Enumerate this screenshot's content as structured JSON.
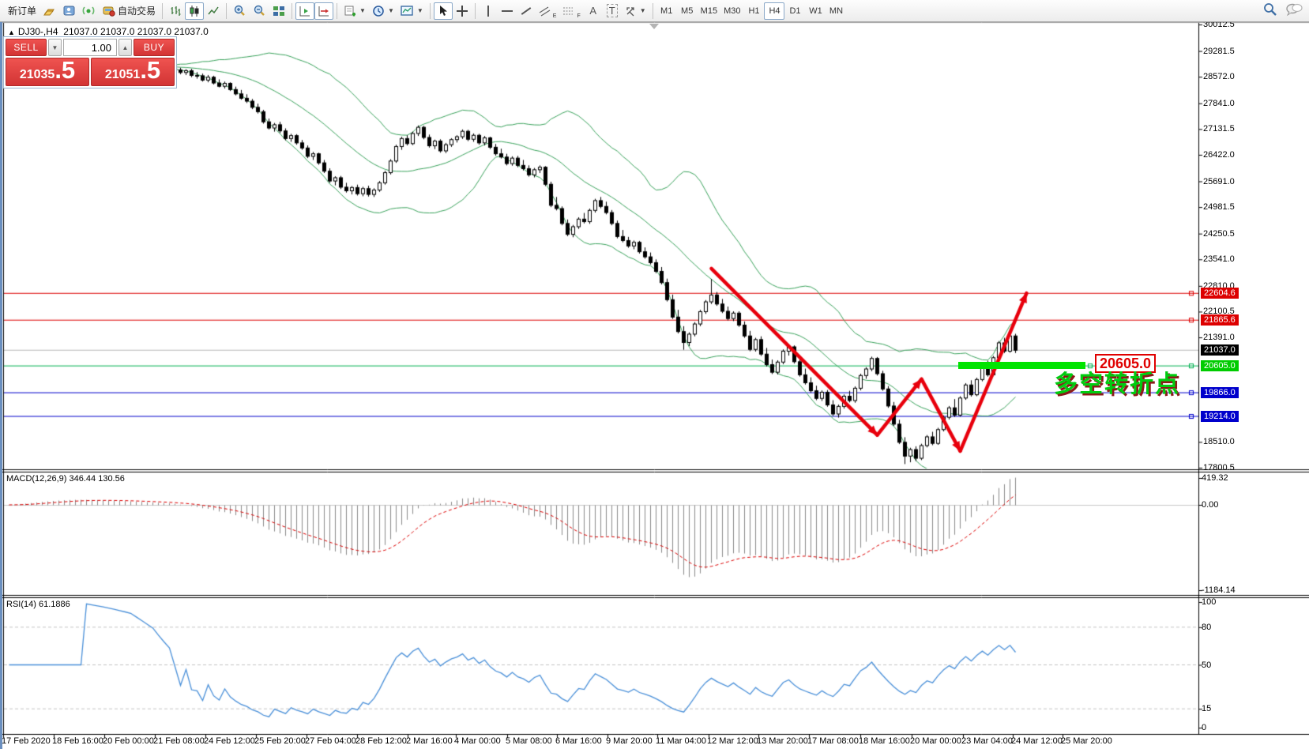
{
  "toolbar": {
    "new_order": "新订单",
    "auto_trading": "自动交易",
    "timeframes": [
      "M1",
      "M5",
      "M15",
      "M30",
      "H1",
      "H4",
      "D1",
      "W1",
      "MN"
    ],
    "active_timeframe": "H4",
    "tool_letters": {
      "channel": "E",
      "fibo": "F",
      "text": "A",
      "label": "T"
    }
  },
  "trade_panel": {
    "sell": "SELL",
    "buy": "BUY",
    "volume": "1.00",
    "sell_main": "21035",
    "sell_frac": ".5",
    "buy_main": "21051",
    "buy_frac": ".5"
  },
  "chart": {
    "symbol_period": "DJ30-,H4",
    "ohlc_text": "21037.0 21037.0 21037.0 21037.0"
  },
  "panels": {
    "macd": {
      "label": "MACD(12,26,9)",
      "value": "346.44",
      "signal": "130.56"
    },
    "rsi": {
      "label": "RSI(14)",
      "value": "61.1886"
    }
  },
  "annotations": {
    "support_price": "20605.0",
    "turning_point": "多空转折点"
  },
  "chart_data": {
    "type": "candlestick",
    "symbol": "DJ30-",
    "timeframe": "H4",
    "y_axis": {
      "ticks": [
        30012.5,
        29281.5,
        28572.0,
        27841.0,
        27131.5,
        26422.0,
        25691.0,
        24981.5,
        24250.5,
        23541.0,
        22810.0,
        22100.5,
        21391.0,
        18510.0,
        17800.5
      ]
    },
    "x_axis": {
      "labels": [
        [
          "17 Feb 2020",
          2
        ],
        [
          "18 Feb 16:00",
          66
        ],
        [
          "20 Feb 00:00",
          130
        ],
        [
          "21 Feb 08:00",
          194
        ],
        [
          "24 Feb 12:00",
          258
        ],
        [
          "25 Feb 20:00",
          322
        ],
        [
          "27 Feb 04:00",
          386
        ],
        [
          "28 Feb 12:00",
          450
        ],
        [
          "2 Mar 16:00",
          514
        ],
        [
          "4 Mar 00:00",
          575
        ],
        [
          "5 Mar 08:00",
          640
        ],
        [
          "6 Mar 16:00",
          703
        ],
        [
          "9 Mar 20:00",
          767
        ],
        [
          "11 Mar 04:00",
          830
        ],
        [
          "12 Mar 12:00",
          895
        ],
        [
          "13 Mar 20:00",
          958
        ],
        [
          "17 Mar 08:00",
          1022
        ],
        [
          "18 Mar 16:00",
          1087
        ],
        [
          "20 Mar 00:00",
          1152
        ],
        [
          "23 Mar 04:00",
          1217
        ],
        [
          "24 Mar 12:00",
          1280
        ],
        [
          "25 Mar 20:00",
          1343
        ]
      ]
    },
    "price_lines": [
      {
        "price": 22604.6,
        "label": "22604.6",
        "line": "#dd0000",
        "bg": "#dd0000",
        "marker": true
      },
      {
        "price": 21865.6,
        "label": "21865.6",
        "line": "#dd0000",
        "bg": "#dd0000",
        "marker": true
      },
      {
        "price": 21037.0,
        "label": "21037.0",
        "line": "#b8b8b8",
        "bg": "#000000",
        "marker": false
      },
      {
        "price": 20605.0,
        "label": "20605.0",
        "line": "#00b050",
        "bg": "#00cc00",
        "marker": true
      },
      {
        "price": 19866.0,
        "label": "19866.0",
        "line": "#0000cc",
        "bg": "#0000cc",
        "marker": true
      },
      {
        "price": 19214.0,
        "label": "19214.0",
        "line": "#0000cc",
        "bg": "#0000cc",
        "marker": true
      }
    ],
    "macd_axis": {
      "max": "419.32",
      "zero": "0.00",
      "min": "-1184.14"
    },
    "rsi_levels": [
      "100",
      "80",
      "50",
      "15",
      "0"
    ],
    "indicator_warmup_closes": [
      28600,
      28640,
      28680,
      28720,
      28750,
      28780,
      28800,
      28820,
      28840,
      28850,
      28860,
      28865,
      28870,
      28868,
      28866,
      28864,
      28862,
      28860,
      28858,
      28856,
      28854,
      28852,
      28850,
      28845,
      28840,
      28835,
      28830,
      28820,
      28810,
      28800
    ],
    "candles": [
      [
        28790,
        28860,
        28700,
        28760
      ],
      [
        28760,
        28820,
        28640,
        28690
      ],
      [
        28690,
        28780,
        28620,
        28740
      ],
      [
        28740,
        28790,
        28560,
        28610
      ],
      [
        28610,
        28700,
        28520,
        28600
      ],
      [
        28600,
        28660,
        28440,
        28480
      ],
      [
        28480,
        28620,
        28420,
        28560
      ],
      [
        28560,
        28600,
        28360,
        28400
      ],
      [
        28400,
        28500,
        28280,
        28310
      ],
      [
        28310,
        28440,
        28250,
        28390
      ],
      [
        28390,
        28420,
        28180,
        28220
      ],
      [
        28220,
        28300,
        28060,
        28100
      ],
      [
        28100,
        28210,
        27940,
        27980
      ],
      [
        27980,
        28090,
        27850,
        27900
      ],
      [
        27900,
        27960,
        27680,
        27730
      ],
      [
        27730,
        27830,
        27560,
        27610
      ],
      [
        27610,
        27660,
        27280,
        27330
      ],
      [
        27330,
        27420,
        27120,
        27160
      ],
      [
        27160,
        27300,
        27060,
        27250
      ],
      [
        27250,
        27330,
        27020,
        27080
      ],
      [
        27080,
        27150,
        26820,
        26870
      ],
      [
        26870,
        27000,
        26780,
        26950
      ],
      [
        26950,
        26990,
        26700,
        26750
      ],
      [
        26750,
        26830,
        26560,
        26610
      ],
      [
        26610,
        26680,
        26330,
        26380
      ],
      [
        26380,
        26500,
        26280,
        26450
      ],
      [
        26450,
        26480,
        26150,
        26200
      ],
      [
        26200,
        26280,
        25920,
        25970
      ],
      [
        25970,
        26050,
        25650,
        25700
      ],
      [
        25700,
        25830,
        25580,
        25790
      ],
      [
        25790,
        25840,
        25480,
        25530
      ],
      [
        25530,
        25650,
        25380,
        25430
      ],
      [
        25430,
        25560,
        25330,
        25520
      ],
      [
        25520,
        25600,
        25300,
        25350
      ],
      [
        25350,
        25540,
        25280,
        25490
      ],
      [
        25490,
        25570,
        25270,
        25330
      ],
      [
        25330,
        25500,
        25260,
        25450
      ],
      [
        25450,
        25700,
        25400,
        25650
      ],
      [
        25650,
        25980,
        25600,
        25930
      ],
      [
        25930,
        26300,
        25880,
        26250
      ],
      [
        26250,
        26700,
        26200,
        26650
      ],
      [
        26650,
        26920,
        26560,
        26870
      ],
      [
        26870,
        26960,
        26680,
        26730
      ],
      [
        26730,
        27060,
        26690,
        27010
      ],
      [
        27010,
        27230,
        26940,
        27180
      ],
      [
        27180,
        27220,
        26850,
        26900
      ],
      [
        26900,
        26980,
        26620,
        26670
      ],
      [
        26670,
        26840,
        26580,
        26800
      ],
      [
        26800,
        26850,
        26480,
        26530
      ],
      [
        26530,
        26750,
        26470,
        26700
      ],
      [
        26700,
        26880,
        26640,
        26840
      ],
      [
        26840,
        26960,
        26760,
        26920
      ],
      [
        26920,
        27120,
        26860,
        27070
      ],
      [
        27070,
        27110,
        26800,
        26850
      ],
      [
        26850,
        27010,
        26780,
        26960
      ],
      [
        26960,
        27000,
        26700,
        26750
      ],
      [
        26750,
        26940,
        26680,
        26890
      ],
      [
        26890,
        26920,
        26580,
        26630
      ],
      [
        26630,
        26720,
        26400,
        26450
      ],
      [
        26450,
        26590,
        26320,
        26360
      ],
      [
        26360,
        26450,
        26130,
        26180
      ],
      [
        26180,
        26380,
        26120,
        26330
      ],
      [
        26330,
        26390,
        26080,
        26130
      ],
      [
        26130,
        26280,
        25990,
        26040
      ],
      [
        26040,
        26130,
        25820,
        25870
      ],
      [
        25870,
        26060,
        25800,
        26010
      ],
      [
        26010,
        26130,
        25920,
        26080
      ],
      [
        26080,
        26110,
        25560,
        25610
      ],
      [
        25610,
        25680,
        24980,
        25030
      ],
      [
        25030,
        25260,
        24890,
        24940
      ],
      [
        24940,
        25000,
        24480,
        24530
      ],
      [
        24530,
        24640,
        24180,
        24230
      ],
      [
        24230,
        24490,
        24150,
        24440
      ],
      [
        24440,
        24700,
        24380,
        24650
      ],
      [
        24650,
        24820,
        24530,
        24580
      ],
      [
        24580,
        24940,
        24520,
        24890
      ],
      [
        24890,
        25210,
        24830,
        25160
      ],
      [
        25160,
        25260,
        24950,
        25000
      ],
      [
        25000,
        25130,
        24780,
        24830
      ],
      [
        24830,
        24900,
        24480,
        24530
      ],
      [
        24530,
        24610,
        24120,
        24170
      ],
      [
        24170,
        24350,
        24010,
        24060
      ],
      [
        24060,
        24160,
        23860,
        23910
      ],
      [
        23910,
        24060,
        23820,
        24010
      ],
      [
        24010,
        24050,
        23700,
        23750
      ],
      [
        23750,
        23870,
        23560,
        23610
      ],
      [
        23610,
        23730,
        23400,
        23450
      ],
      [
        23450,
        23540,
        23160,
        23210
      ],
      [
        23210,
        23330,
        22850,
        22900
      ],
      [
        22900,
        23010,
        22380,
        22430
      ],
      [
        22430,
        22570,
        21900,
        21950
      ],
      [
        21950,
        22150,
        21500,
        21550
      ],
      [
        21550,
        21700,
        21050,
        21250
      ],
      [
        21250,
        21530,
        21150,
        21480
      ],
      [
        21480,
        21810,
        21420,
        21760
      ],
      [
        21760,
        22150,
        21700,
        22100
      ],
      [
        22100,
        22420,
        22040,
        22370
      ],
      [
        22370,
        23000,
        22310,
        22560
      ],
      [
        22560,
        22640,
        22260,
        22310
      ],
      [
        22310,
        22450,
        22060,
        22110
      ],
      [
        22110,
        22240,
        21860,
        21910
      ],
      [
        21910,
        22110,
        21840,
        22060
      ],
      [
        22060,
        22110,
        21680,
        21730
      ],
      [
        21730,
        21830,
        21380,
        21430
      ],
      [
        21430,
        21570,
        21010,
        21060
      ],
      [
        21060,
        21380,
        21000,
        21330
      ],
      [
        21330,
        21420,
        20880,
        20930
      ],
      [
        20930,
        21100,
        20590,
        20640
      ],
      [
        20640,
        20780,
        20380,
        20430
      ],
      [
        20430,
        20760,
        20370,
        20710
      ],
      [
        20710,
        21060,
        20650,
        21010
      ],
      [
        21010,
        21180,
        20890,
        21130
      ],
      [
        21130,
        21170,
        20670,
        20720
      ],
      [
        20720,
        20810,
        20310,
        20360
      ],
      [
        20360,
        20530,
        20090,
        20140
      ],
      [
        20140,
        20290,
        19870,
        19920
      ],
      [
        19920,
        20060,
        19660,
        19710
      ],
      [
        19710,
        19930,
        19640,
        19880
      ],
      [
        19880,
        19940,
        19480,
        19530
      ],
      [
        19530,
        19660,
        19230,
        19280
      ],
      [
        19280,
        19540,
        19180,
        19490
      ],
      [
        19490,
        19820,
        19430,
        19770
      ],
      [
        19770,
        19920,
        19600,
        19650
      ],
      [
        19650,
        20040,
        19590,
        19990
      ],
      [
        19990,
        20390,
        19930,
        20340
      ],
      [
        20340,
        20570,
        20250,
        20520
      ],
      [
        20520,
        20860,
        20460,
        20810
      ],
      [
        20810,
        20850,
        20340,
        20390
      ],
      [
        20390,
        20470,
        19920,
        19970
      ],
      [
        19970,
        20050,
        19450,
        19500
      ],
      [
        19500,
        19610,
        18950,
        19000
      ],
      [
        19000,
        19120,
        18450,
        18500
      ],
      [
        18500,
        18640,
        17900,
        18120
      ],
      [
        18120,
        18350,
        17950,
        18300
      ],
      [
        18300,
        18390,
        17980,
        18060
      ],
      [
        18060,
        18460,
        18010,
        18410
      ],
      [
        18410,
        18700,
        18360,
        18650
      ],
      [
        18650,
        18790,
        18420,
        18470
      ],
      [
        18470,
        18900,
        18430,
        18850
      ],
      [
        18850,
        19240,
        18800,
        19190
      ],
      [
        19190,
        19500,
        19130,
        19450
      ],
      [
        19450,
        19690,
        19200,
        19250
      ],
      [
        19250,
        19770,
        19210,
        19720
      ],
      [
        19720,
        20130,
        19670,
        20080
      ],
      [
        20080,
        20210,
        19760,
        19810
      ],
      [
        19810,
        20280,
        19770,
        20230
      ],
      [
        20230,
        20640,
        20180,
        20590
      ],
      [
        20590,
        20750,
        20310,
        20360
      ],
      [
        20360,
        20880,
        20320,
        20830
      ],
      [
        20830,
        21290,
        20780,
        21240
      ],
      [
        21240,
        21380,
        20960,
        21010
      ],
      [
        21010,
        21480,
        20970,
        21430
      ],
      [
        21430,
        21490,
        20960,
        21037
      ]
    ],
    "trend_arrows": {
      "color": "#e8000c",
      "points": [
        [
          97,
          23290
        ],
        [
          127,
          18700
        ],
        [
          135,
          20240
        ],
        [
          142,
          18260
        ],
        [
          154,
          22610
        ]
      ]
    },
    "support_bar": {
      "price": 20605.0,
      "start_index": 142,
      "end_index": 165,
      "color": "#00e400"
    }
  }
}
